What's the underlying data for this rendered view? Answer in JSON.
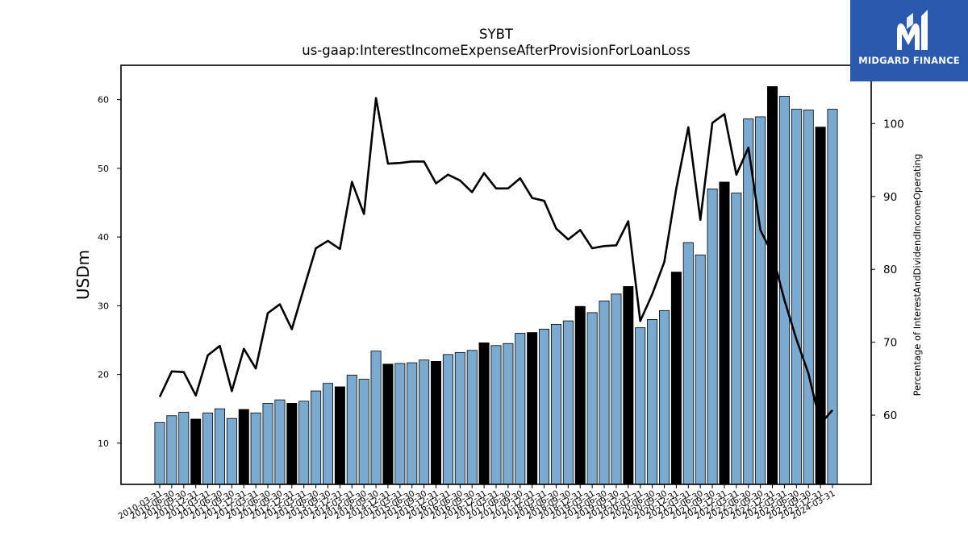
{
  "brand": {
    "name": "MIDGARD FINANCE",
    "bg_color": "#2b5aad"
  },
  "chart_data": {
    "type": "bar",
    "title": "SYBT",
    "subtitle": "us-gaap:InterestIncomeExpenseAfterProvisionForLoanLoss",
    "ylabel": "USDm",
    "y2label": "Percentage of InterestAndDividendIncomeOperating",
    "ylim": [
      4,
      65
    ],
    "y2lim": [
      50.5,
      108
    ],
    "yticks": [
      10,
      20,
      30,
      40,
      50,
      60
    ],
    "y2ticks": [
      60,
      70,
      80,
      90,
      100
    ],
    "bar_color": "#7aaad0",
    "highlight_color": "#000000",
    "line_color": "#000000",
    "categories": [
      "2010-03-31",
      "2010-06-30",
      "2010-09-30",
      "2010-12-31",
      "2011-03-31",
      "2011-06-30",
      "2011-09-30",
      "2011-12-31",
      "2012-03-31",
      "2012-06-30",
      "2012-09-30",
      "2012-12-31",
      "2013-03-31",
      "2013-06-30",
      "2013-09-30",
      "2013-12-31",
      "2014-03-31",
      "2014-06-30",
      "2014-09-30",
      "2014-12-31",
      "2015-03-31",
      "2015-06-30",
      "2015-09-30",
      "2015-12-31",
      "2016-03-31",
      "2016-06-30",
      "2016-09-30",
      "2016-12-31",
      "2017-03-31",
      "2017-06-30",
      "2017-09-30",
      "2017-12-31",
      "2018-03-31",
      "2018-06-30",
      "2018-09-30",
      "2018-12-31",
      "2019-03-31",
      "2019-06-30",
      "2019-09-30",
      "2019-12-31",
      "2020-03-31",
      "2020-06-30",
      "2020-09-30",
      "2020-12-31",
      "2021-03-31",
      "2021-06-30",
      "2021-09-30",
      "2021-12-31",
      "2022-03-31",
      "2022-06-30",
      "2022-09-30",
      "2022-12-31",
      "2023-03-31",
      "2023-06-30",
      "2023-09-30",
      "2023-12-31",
      "2024-03-31"
    ],
    "tick_labels": [
      "2010-03-31",
      "2010-06-30",
      "2010-09-30",
      "2010-12-31",
      "2011-03-31",
      "2011-06-30",
      "2011-09-30",
      "2011-12-31",
      "2012-03-31",
      "2012-06-30",
      "2012-09-30",
      "2012-12-31",
      "2013-03-31",
      "2013-06-30",
      "2013-09-30",
      "2013-12-31",
      "2014-03-31",
      "2014-06-30",
      "2014-09-30",
      "2014-12-31",
      "2015-03-31",
      "2015-06-30",
      "2015-09-30",
      "2015-12-31",
      "2016-03-31",
      "2016-06-30",
      "2016-09-30",
      "2016-12-31",
      "2017-03-31",
      "2017-06-30",
      "2017-09-30",
      "2017-12-31",
      "2018-03-31",
      "2018-06-30",
      "2018-09-30",
      "2018-12-31",
      "2019-03-31",
      "2019-06-30",
      "2019-09-30",
      "2019-12-31",
      "2020-03-31",
      "2020-06-30",
      "2020-09-30",
      "2020-12-31",
      "2021-03-31",
      "2021-06-30",
      "2021-09-30",
      "2021-12-31",
      "2022-03-31",
      "2022-06-30",
      "2022-09-30",
      "2022-12-31",
      "2023-03-31",
      "2023-06-30",
      "2023-09-30",
      "2023-12-31",
      "2024-03-31"
    ],
    "series": [
      {
        "values": [
          13.0,
          14.0,
          14.5,
          13.5,
          14.4,
          15.0,
          13.6,
          14.9,
          14.4,
          15.8,
          16.3,
          15.8,
          16.1,
          17.6,
          18.7,
          18.2,
          19.9,
          19.3,
          23.4,
          21.5,
          21.6,
          21.7,
          22.1,
          21.9,
          22.9,
          23.2,
          23.5,
          24.6,
          24.2,
          24.5,
          26.0,
          26.1,
          26.6,
          27.3,
          27.8,
          29.9,
          29.0,
          30.7,
          31.7,
          32.8,
          26.8,
          28.0,
          29.3,
          34.9,
          39.2,
          37.4,
          47.0,
          48.0,
          46.4,
          57.2,
          57.5,
          61.9,
          60.5,
          58.6,
          58.5,
          56.0,
          58.6
        ],
        "highlight": [
          false,
          false,
          false,
          true,
          false,
          false,
          false,
          true,
          false,
          false,
          false,
          true,
          false,
          false,
          false,
          true,
          false,
          false,
          false,
          true,
          false,
          false,
          false,
          true,
          false,
          false,
          false,
          true,
          false,
          false,
          false,
          true,
          false,
          false,
          false,
          true,
          false,
          false,
          false,
          true,
          false,
          false,
          false,
          true,
          false,
          false,
          false,
          true,
          false,
          false,
          false,
          true,
          false,
          false,
          false,
          true,
          false
        ]
      },
      {
        "axis": "right",
        "values": [
          62.5,
          66.0,
          65.9,
          62.7,
          68.2,
          69.5,
          63.3,
          69.1,
          66.4,
          74.0,
          75.2,
          71.8,
          77.4,
          82.9,
          83.9,
          82.8,
          92.0,
          87.6,
          103.5,
          94.5,
          94.6,
          94.8,
          94.8,
          91.8,
          93.0,
          92.2,
          90.6,
          93.2,
          91.1,
          91.1,
          92.5,
          89.8,
          89.4,
          85.6,
          84.1,
          85.4,
          82.9,
          83.2,
          83.3,
          86.6,
          72.9,
          76.6,
          81.0,
          91.1,
          99.5,
          86.8,
          100.1,
          101.3,
          93.0,
          96.7,
          85.4,
          82.1,
          75.8,
          70.4,
          65.7,
          58.8,
          60.7
        ]
      }
    ]
  }
}
